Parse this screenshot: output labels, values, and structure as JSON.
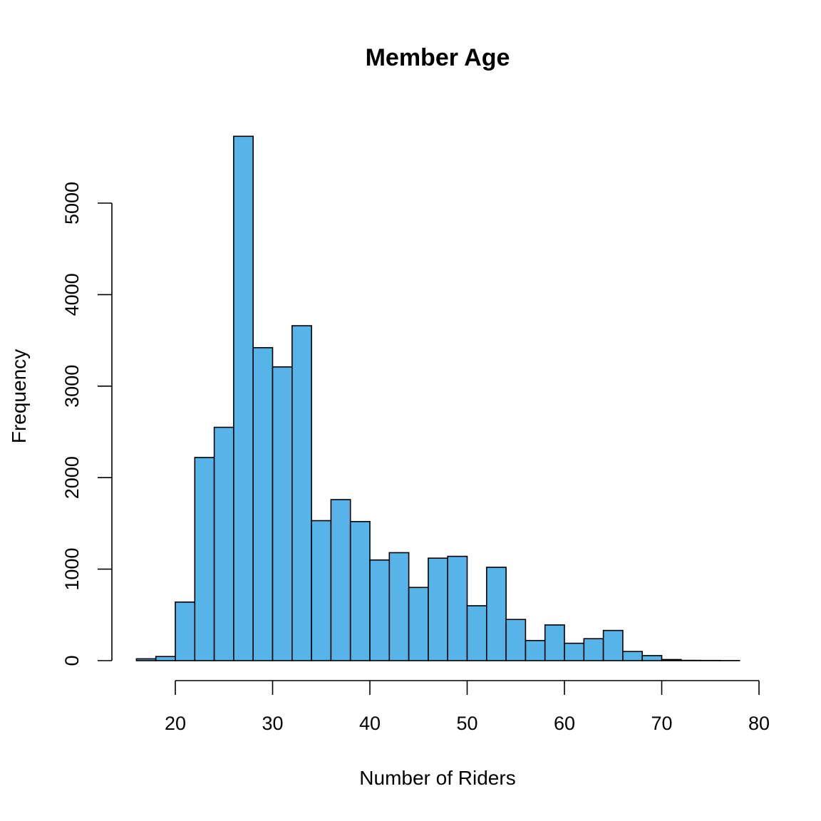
{
  "chart_data": {
    "type": "bar",
    "subtype": "histogram",
    "title": "Member Age",
    "xlabel": "Number of Riders",
    "ylabel": "Frequency",
    "bar_color": "#56B4E9",
    "edge_color": "#000000",
    "xlim": [
      16,
      80
    ],
    "ylim": [
      0,
      5800
    ],
    "x_ticks": [
      20,
      30,
      40,
      50,
      60,
      70,
      80
    ],
    "y_ticks": [
      0,
      1000,
      2000,
      3000,
      4000,
      5000
    ],
    "bin_width": 2,
    "bins": [
      {
        "start": 16,
        "end": 18,
        "value": 20
      },
      {
        "start": 18,
        "end": 20,
        "value": 45
      },
      {
        "start": 20,
        "end": 22,
        "value": 640
      },
      {
        "start": 22,
        "end": 24,
        "value": 2220
      },
      {
        "start": 24,
        "end": 26,
        "value": 2550
      },
      {
        "start": 26,
        "end": 28,
        "value": 5730
      },
      {
        "start": 28,
        "end": 30,
        "value": 3420
      },
      {
        "start": 30,
        "end": 32,
        "value": 3210
      },
      {
        "start": 32,
        "end": 34,
        "value": 3660
      },
      {
        "start": 34,
        "end": 36,
        "value": 1530
      },
      {
        "start": 36,
        "end": 38,
        "value": 1760
      },
      {
        "start": 38,
        "end": 40,
        "value": 1520
      },
      {
        "start": 40,
        "end": 42,
        "value": 1100
      },
      {
        "start": 42,
        "end": 44,
        "value": 1180
      },
      {
        "start": 44,
        "end": 46,
        "value": 800
      },
      {
        "start": 46,
        "end": 48,
        "value": 1120
      },
      {
        "start": 48,
        "end": 50,
        "value": 1140
      },
      {
        "start": 50,
        "end": 52,
        "value": 600
      },
      {
        "start": 52,
        "end": 54,
        "value": 1020
      },
      {
        "start": 54,
        "end": 56,
        "value": 450
      },
      {
        "start": 56,
        "end": 58,
        "value": 220
      },
      {
        "start": 58,
        "end": 60,
        "value": 390
      },
      {
        "start": 60,
        "end": 62,
        "value": 190
      },
      {
        "start": 62,
        "end": 64,
        "value": 240
      },
      {
        "start": 64,
        "end": 66,
        "value": 330
      },
      {
        "start": 66,
        "end": 68,
        "value": 100
      },
      {
        "start": 68,
        "end": 70,
        "value": 55
      },
      {
        "start": 70,
        "end": 72,
        "value": 12
      },
      {
        "start": 72,
        "end": 74,
        "value": 3
      },
      {
        "start": 74,
        "end": 76,
        "value": 2
      },
      {
        "start": 76,
        "end": 78,
        "value": 1
      }
    ]
  }
}
